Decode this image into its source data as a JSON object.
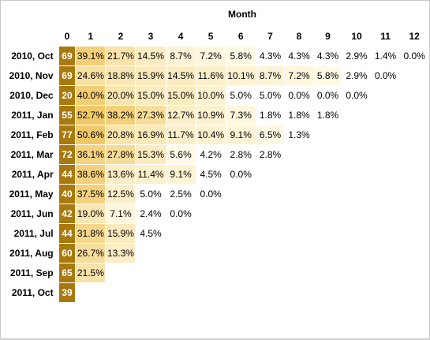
{
  "chart_data": {
    "type": "heatmap",
    "header_title": "Month",
    "month_columns": [
      "0",
      "1",
      "2",
      "3",
      "4",
      "5",
      "6",
      "7",
      "8",
      "9",
      "10",
      "11",
      "12"
    ],
    "rows": [
      {
        "cohort": "2010, Oct",
        "size": "69",
        "values": [
          "39.1%",
          "21.7%",
          "14.5%",
          "8.7%",
          "7.2%",
          "5.8%",
          "4.3%",
          "4.3%",
          "4.3%",
          "2.9%",
          "1.4%",
          "0.0%"
        ]
      },
      {
        "cohort": "2010, Nov",
        "size": "69",
        "values": [
          "24.6%",
          "18.8%",
          "15.9%",
          "14.5%",
          "11.6%",
          "10.1%",
          "8.7%",
          "7.2%",
          "5.8%",
          "2.9%",
          "0.0%"
        ]
      },
      {
        "cohort": "2010, Dec",
        "size": "20",
        "values": [
          "40.0%",
          "20.0%",
          "15.0%",
          "15.0%",
          "10.0%",
          "5.0%",
          "5.0%",
          "0.0%",
          "0.0%",
          "0.0%"
        ]
      },
      {
        "cohort": "2011, Jan",
        "size": "55",
        "values": [
          "52.7%",
          "38.2%",
          "27.3%",
          "12.7%",
          "10.9%",
          "7.3%",
          "1.8%",
          "1.8%",
          "1.8%"
        ]
      },
      {
        "cohort": "2011, Feb",
        "size": "77",
        "values": [
          "50.6%",
          "20.8%",
          "16.9%",
          "11.7%",
          "10.4%",
          "9.1%",
          "6.5%",
          "1.3%"
        ]
      },
      {
        "cohort": "2011, Mar",
        "size": "72",
        "values": [
          "36.1%",
          "27.8%",
          "15.3%",
          "5.6%",
          "4.2%",
          "2.8%",
          "2.8%"
        ]
      },
      {
        "cohort": "2011, Apr",
        "size": "44",
        "values": [
          "38.6%",
          "13.6%",
          "11.4%",
          "9.1%",
          "4.5%",
          "0.0%"
        ]
      },
      {
        "cohort": "2011, May",
        "size": "40",
        "values": [
          "37.5%",
          "12.5%",
          "5.0%",
          "2.5%",
          "0.0%"
        ]
      },
      {
        "cohort": "2011, Jun",
        "size": "42",
        "values": [
          "19.0%",
          "7.1%",
          "2.4%",
          "0.0%"
        ]
      },
      {
        "cohort": "2011, Jul",
        "size": "44",
        "values": [
          "31.8%",
          "15.9%",
          "4.5%"
        ]
      },
      {
        "cohort": "2011, Aug",
        "size": "60",
        "values": [
          "26.7%",
          "13.3%"
        ]
      },
      {
        "cohort": "2011, Sep",
        "size": "65",
        "values": [
          "21.5%"
        ]
      },
      {
        "cohort": "2011, Oct",
        "size": "39",
        "values": []
      }
    ],
    "colors": {
      "size_cell": "#a8790e",
      "scale_high": "#f2c96a",
      "scale_low": "#fffbe8",
      "below_threshold": "#ffffff"
    },
    "shading_threshold_percent": 5.6
  }
}
